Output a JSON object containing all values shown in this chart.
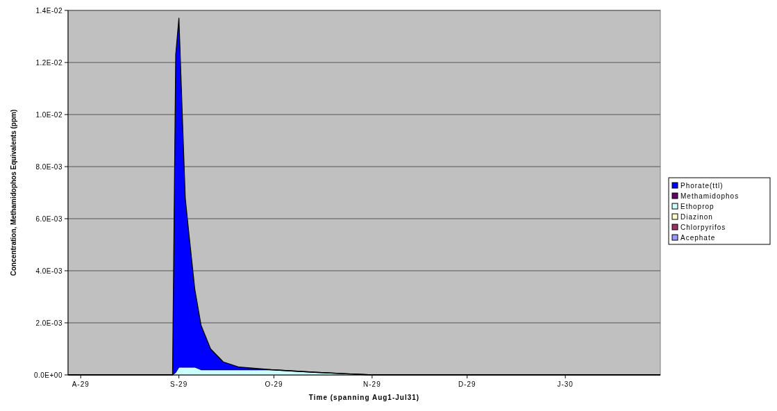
{
  "chart_data": {
    "type": "area",
    "stacked": true,
    "xlabel": "Time (spanning Aug1-Jul31)",
    "ylabel": "Concentration, Methamidophos Equivalents  (ppm)",
    "x": [
      "1929-07-28",
      "1929-08-30",
      "1929-08-31",
      "1929-09-01",
      "1929-09-02",
      "1929-09-03",
      "1929-09-04",
      "1929-09-06",
      "1929-09-08",
      "1929-09-11",
      "1929-09-15",
      "1929-09-20",
      "1929-09-30",
      "1929-10-14",
      "1929-11-01",
      "1929-12-01",
      "1930-01-01",
      "1930-01-31"
    ],
    "xlim": [
      "1929-07-28",
      "1930-01-31"
    ],
    "xticks": [
      {
        "value": "1929-08-01",
        "label": "A-29"
      },
      {
        "value": "1929-09-01",
        "label": "S-29"
      },
      {
        "value": "1929-10-01",
        "label": "O-29"
      },
      {
        "value": "1929-11-01",
        "label": "N-29"
      },
      {
        "value": "1929-12-01",
        "label": "D-29"
      },
      {
        "value": "1930-01-01",
        "label": "J-30"
      }
    ],
    "ylim": [
      0,
      0.014
    ],
    "yticks": [
      {
        "value": 0,
        "label": "0.0E+00"
      },
      {
        "value": 0.002,
        "label": "2.0E-03"
      },
      {
        "value": 0.004,
        "label": "4.0E-03"
      },
      {
        "value": 0.006,
        "label": "6.0E-03"
      },
      {
        "value": 0.008,
        "label": "8.0E-03"
      },
      {
        "value": 0.01,
        "label": "1.0E-02"
      },
      {
        "value": 0.012,
        "label": "1.2E-02"
      },
      {
        "value": 0.014,
        "label": "1.4E-02"
      }
    ],
    "grid": "y",
    "legend": "right",
    "series": [
      {
        "name": "Acephate",
        "color": "#9999ff",
        "values": [
          null,
          null,
          null,
          null,
          null,
          null,
          null,
          null,
          null,
          null,
          null,
          null,
          null,
          null,
          null,
          null,
          null,
          null
        ]
      },
      {
        "name": "Chlorpyrifos",
        "color": "#993366",
        "values": [
          null,
          null,
          null,
          null,
          null,
          null,
          null,
          null,
          null,
          null,
          null,
          null,
          null,
          null,
          null,
          null,
          null,
          null
        ]
      },
      {
        "name": "Diazinon",
        "color": "#ffffcc",
        "values": [
          null,
          null,
          null,
          null,
          null,
          null,
          null,
          null,
          null,
          null,
          null,
          null,
          null,
          null,
          null,
          null,
          null,
          null
        ]
      },
      {
        "name": "Ethoprop",
        "color": "#ccffff",
        "values": [
          0,
          0,
          0.0001,
          0.0003,
          0.0003,
          0.0003,
          0.0003,
          0.0003,
          0.0002,
          0.0002,
          0.0002,
          0.0002,
          0.0002,
          0.0001,
          0,
          0,
          0,
          0
        ]
      },
      {
        "name": "Methamidophos",
        "color": "#660066",
        "values": [
          null,
          null,
          null,
          null,
          null,
          null,
          null,
          null,
          null,
          null,
          null,
          null,
          null,
          null,
          null,
          null,
          null,
          null
        ]
      },
      {
        "name": "Phorate(ttl)",
        "color": "#0000ff",
        "values": [
          0,
          0,
          0.0122,
          0.0134,
          0.0099,
          0.0065,
          0.0053,
          0.003,
          0.0017,
          0.0008,
          0.0003,
          0.0001,
          0,
          0,
          0,
          0,
          0,
          0
        ]
      }
    ]
  }
}
